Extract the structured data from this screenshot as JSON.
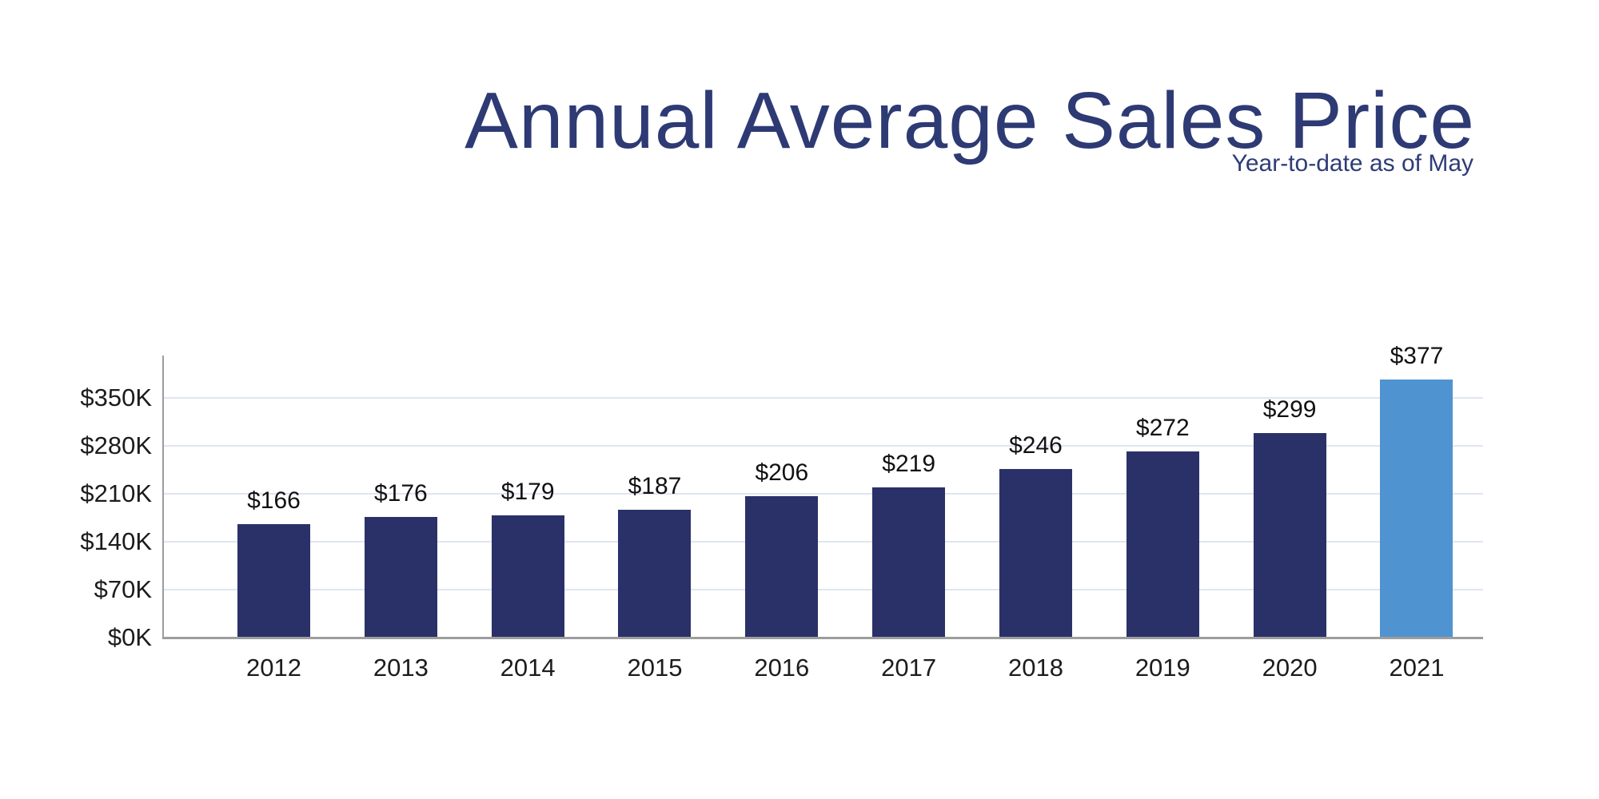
{
  "page": {
    "background": "#ffffff"
  },
  "chart_data": {
    "type": "bar",
    "title": "Annual Average Sales Price",
    "subtitle": "Year-to-date as of May",
    "categories": [
      "2012",
      "2013",
      "2014",
      "2015",
      "2016",
      "2017",
      "2018",
      "2019",
      "2020",
      "2021"
    ],
    "values": [
      166,
      176,
      179,
      187,
      206,
      219,
      246,
      272,
      299,
      377
    ],
    "value_labels": [
      "$166",
      "$176",
      "$179",
      "$187",
      "$206",
      "$219",
      "$246",
      "$272",
      "$299",
      "$377"
    ],
    "unit": "thousands of dollars",
    "xlabel": "",
    "ylabel": "",
    "yticks": [
      {
        "label": "$0K",
        "value": 0
      },
      {
        "label": "$70K",
        "value": 70
      },
      {
        "label": "$140K",
        "value": 140
      },
      {
        "label": "$210K",
        "value": 210
      },
      {
        "label": "$280K",
        "value": 280
      },
      {
        "label": "$350K",
        "value": 350
      }
    ],
    "ylim": [
      0,
      412
    ],
    "grid": true,
    "legend": false,
    "highlight_index": 9,
    "colors": {
      "bar": "#2a3168",
      "highlight": "#4f94d0",
      "title": "#2d3a74",
      "grid": "#dfe6f0",
      "axis": "#9d9d9d",
      "text": "#1c1c1c"
    }
  }
}
